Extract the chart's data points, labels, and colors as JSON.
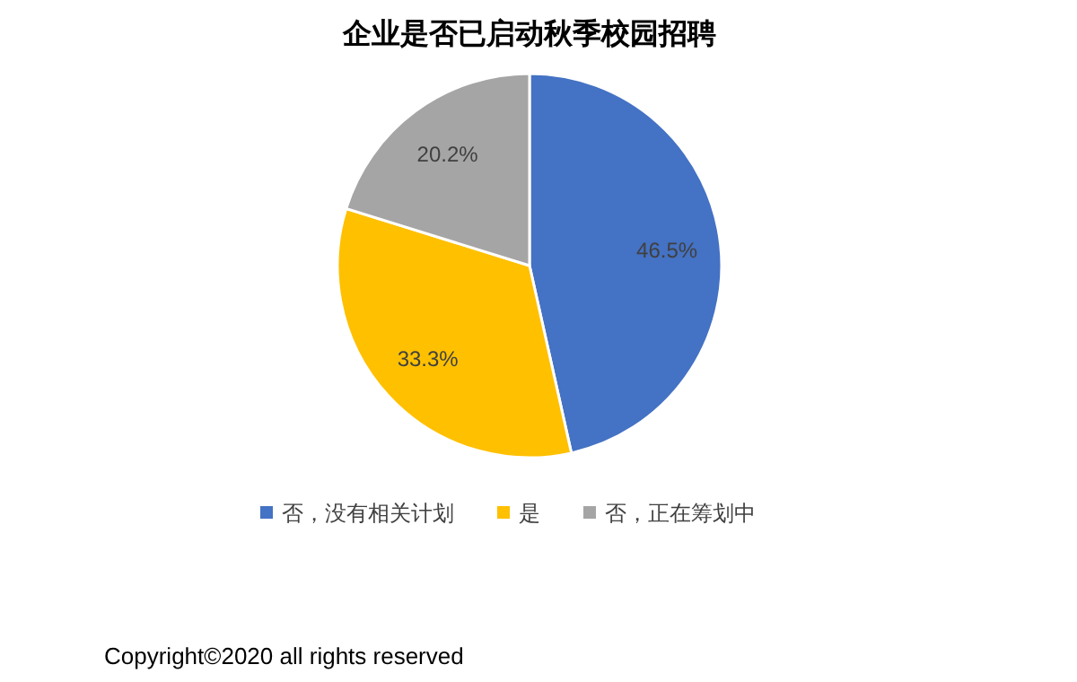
{
  "chart_data": {
    "type": "pie",
    "title": "企业是否已启动秋季校园招聘",
    "categories": [
      "否，没有相关计划",
      "是",
      "否，正在筹划中"
    ],
    "values": [
      46.5,
      33.3,
      20.2
    ],
    "value_labels": [
      "46.5%",
      "33.3%",
      "20.2%"
    ],
    "colors": [
      "#4472c4",
      "#ffc000",
      "#a5a5a5"
    ],
    "legend": "bottom",
    "annotations": [
      "Copyright©2020 all rights reserved"
    ]
  }
}
